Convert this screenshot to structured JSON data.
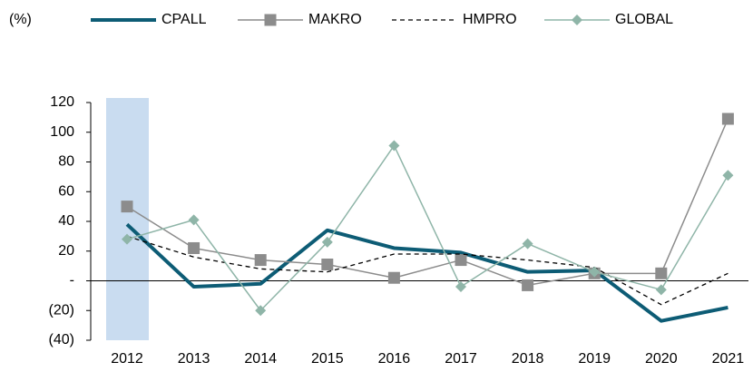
{
  "chart_data": {
    "type": "line",
    "unit_label": "(%)",
    "categories": [
      "2012",
      "2013",
      "2014",
      "2015",
      "2016",
      "2017",
      "2018",
      "2019",
      "2020",
      "2021"
    ],
    "highlight": "2012",
    "highlight_color": "#c9dcf0",
    "series": [
      {
        "name": "CPALL",
        "color": "#0d5c75",
        "width": 4,
        "dash": false,
        "marker": null,
        "values": [
          38,
          -4,
          -2,
          34,
          22,
          19,
          6,
          7,
          -27,
          -18
        ]
      },
      {
        "name": "MAKRO",
        "color": "#8c8c8c",
        "width": 1.5,
        "dash": false,
        "marker": "square",
        "values": [
          50,
          22,
          14,
          11,
          2,
          14,
          -3,
          5,
          5,
          109
        ]
      },
      {
        "name": "HMPRO",
        "color": "#000000",
        "width": 1.3,
        "dash": true,
        "marker": null,
        "values": [
          30,
          16,
          8,
          6,
          18,
          18,
          14,
          9,
          -16,
          5
        ]
      },
      {
        "name": "GLOBAL",
        "color": "#8fb5a8",
        "width": 1.5,
        "dash": false,
        "marker": "diamond",
        "values": [
          28,
          41,
          -20,
          26,
          91,
          -4,
          25,
          6,
          -6,
          71
        ]
      }
    ],
    "ylim": [
      -40,
      120
    ],
    "yticks": [
      {
        "value": -40,
        "label": "(40)"
      },
      {
        "value": -20,
        "label": "(20)"
      },
      {
        "value": 0,
        "label": "-"
      },
      20,
      40,
      60,
      80,
      100,
      120
    ]
  }
}
